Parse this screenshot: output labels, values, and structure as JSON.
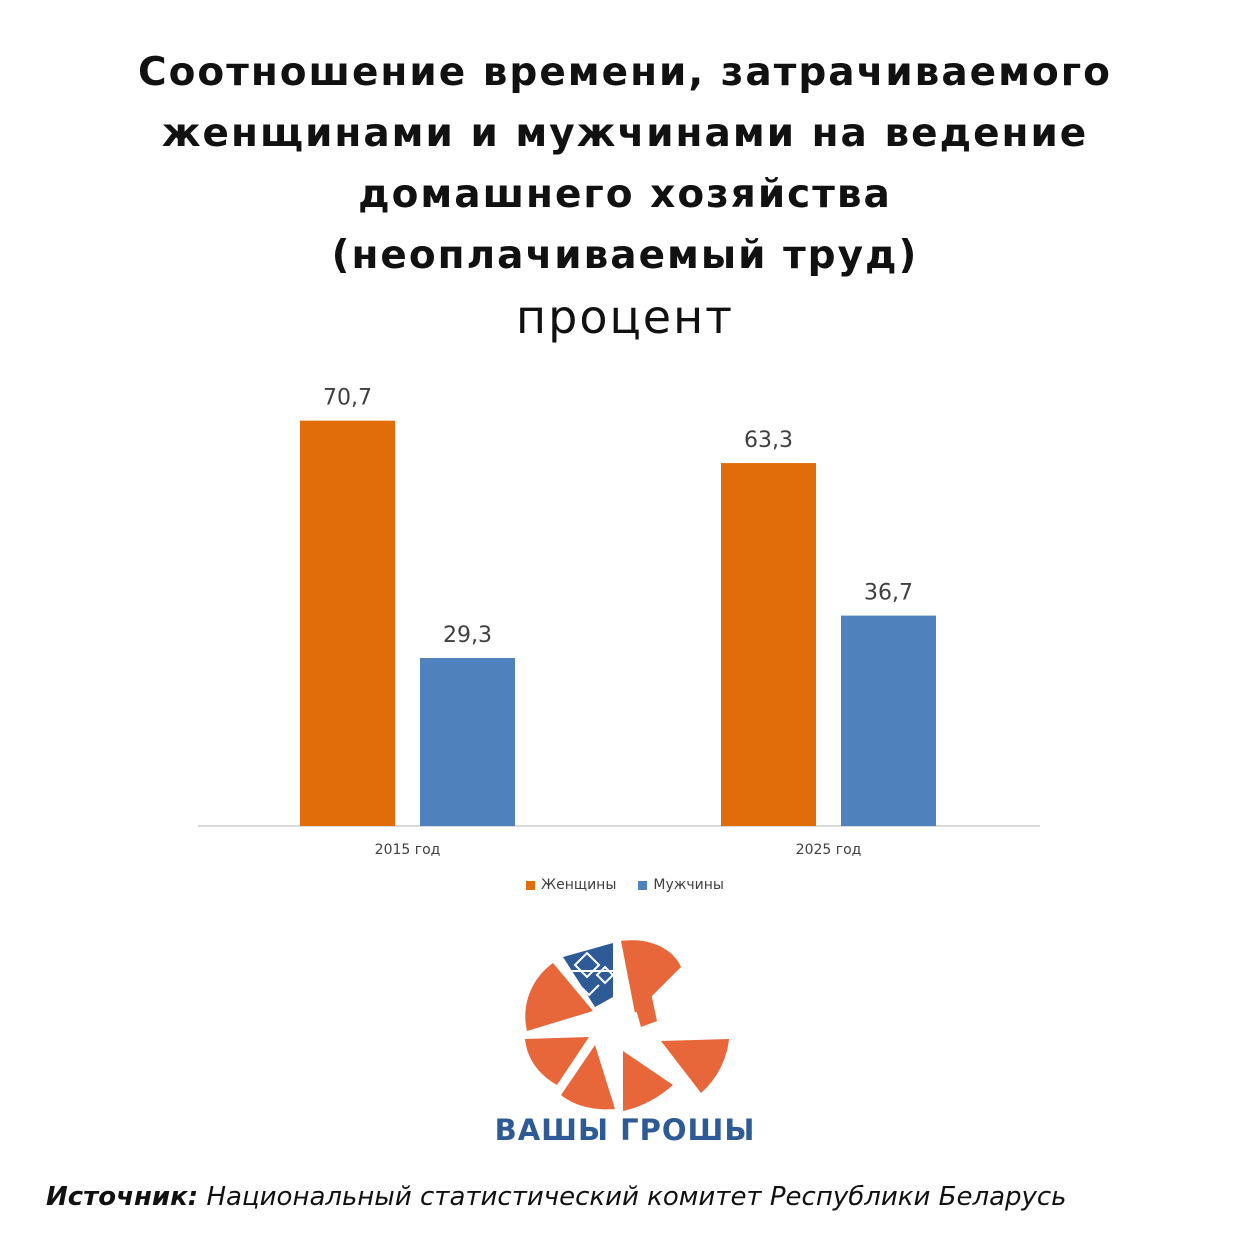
{
  "title_lines": [
    "Соотношение времени, затрачиваемого",
    "женщинами и мужчинами на ведение",
    "домашнего хозяйства",
    "(неоплачиваемый труд)"
  ],
  "subtitle": "процент",
  "chart_data": {
    "type": "bar",
    "title": "Соотношение времени, затрачиваемого женщинами и мужчинами на ведение домашнего хозяйства (неоплачиваемый труд)",
    "ylabel": "процент",
    "categories": [
      "2015 год",
      "2025 год"
    ],
    "series": [
      {
        "name": "Женщины",
        "values": [
          70.7,
          63.3
        ],
        "labels": [
          "70,7",
          "63,3"
        ],
        "color": "#e06c0a"
      },
      {
        "name": "Мужчины",
        "values": [
          29.3,
          36.7
        ],
        "labels": [
          "29,3",
          "36,7"
        ],
        "color": "#4f81bd"
      }
    ],
    "ylim": [
      0,
      75
    ],
    "grid": false,
    "legend": "bottom"
  },
  "logo": {
    "text": "ВАШЫ ГРОШЫ",
    "accent": "#e8673a",
    "brand_color": "#2e5b96"
  },
  "source": {
    "label": "Источник:",
    "text": "Национальный статистический комитет Республики Беларусь"
  }
}
